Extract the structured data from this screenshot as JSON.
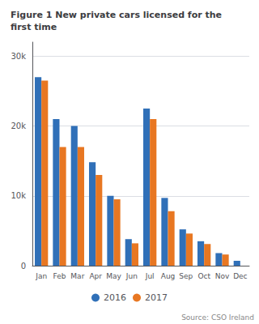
{
  "chart_data": {
    "type": "bar",
    "title": "Figure 1 New private cars licensed for the\nfirst time",
    "annotations": [
      "Source: CSO Ireland"
    ],
    "categories": [
      "Jan",
      "Feb",
      "Mar",
      "Apr",
      "May",
      "Jun",
      "Jul",
      "Aug",
      "Sep",
      "Oct",
      "Nov",
      "Dec"
    ],
    "series": [
      {
        "name": "2016",
        "color": "#3070b8",
        "values": [
          27000,
          21000,
          20000,
          14800,
          10000,
          3800,
          22500,
          9700,
          5200,
          3500,
          1800,
          700
        ]
      },
      {
        "name": "2017",
        "color": "#e87722",
        "values": [
          26500,
          17000,
          17000,
          13000,
          9500,
          3200,
          21000,
          7800,
          4600,
          3100,
          1600,
          0
        ]
      }
    ],
    "ylim": [
      0,
      32000
    ],
    "yticks": [
      0,
      {
        "value": 10000,
        "label": "10k"
      },
      {
        "value": 20000,
        "label": "20k"
      },
      {
        "value": 30000,
        "label": "30k"
      }
    ],
    "grid": true,
    "legend": "bottom"
  }
}
